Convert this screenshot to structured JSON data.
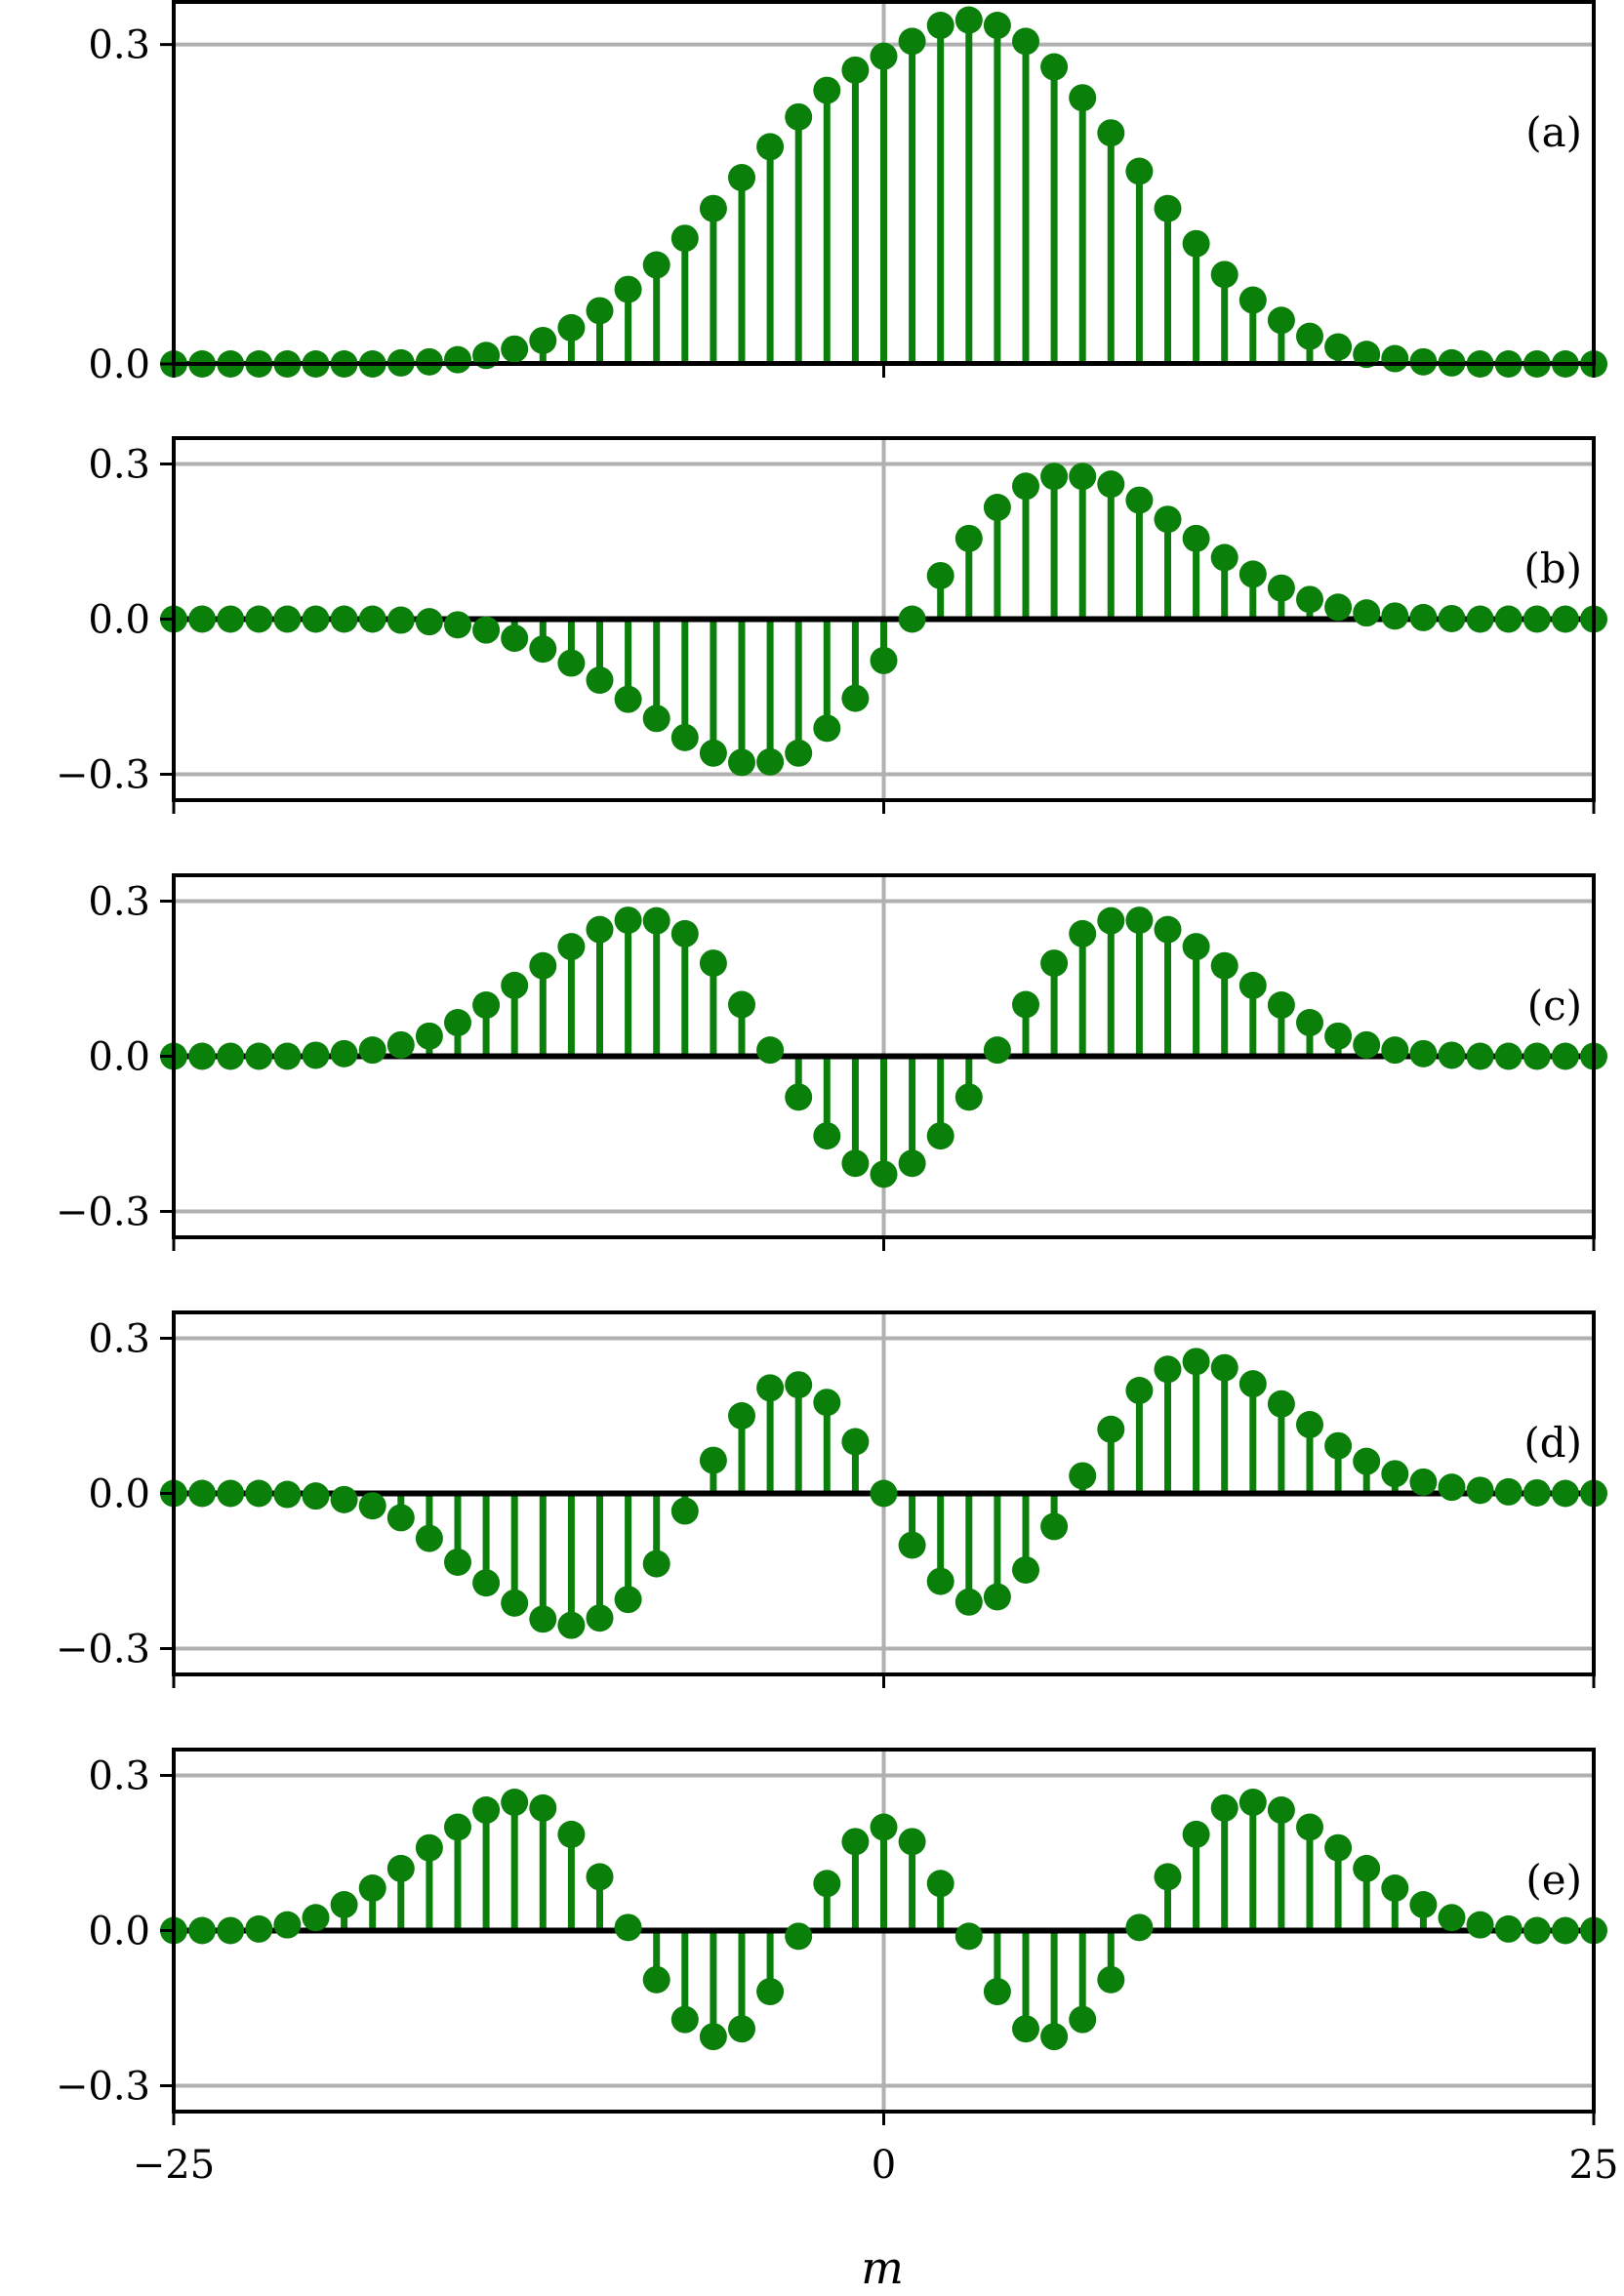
{
  "chart_data": {
    "type": "stem",
    "xlabel": "m",
    "x": [
      -25,
      -24,
      -23,
      -22,
      -21,
      -20,
      -19,
      -18,
      -17,
      -16,
      -15,
      -14,
      -13,
      -12,
      -11,
      -10,
      -9,
      -8,
      -7,
      -6,
      -5,
      -4,
      -3,
      -2,
      -1,
      0,
      1,
      2,
      3,
      4,
      5,
      6,
      7,
      8,
      9,
      10,
      11,
      12,
      13,
      14,
      15,
      16,
      17,
      18,
      19,
      20,
      21,
      22,
      23,
      24,
      25
    ],
    "xlim": [
      -25,
      25
    ],
    "xticks": [
      -25,
      0,
      25
    ],
    "xtick_labels": [
      "−25",
      "0",
      "25"
    ],
    "grid": true,
    "colors": {
      "stem": "#0a800a",
      "grid": "#b0b0b0",
      "axis": "#000000"
    },
    "panels": [
      {
        "label": "(a)",
        "ylim": [
          0,
          0.34
        ],
        "yticks": [
          0,
          0.3
        ],
        "ytick_labels": [
          "0.0",
          "0.3"
        ],
        "values": [
          0,
          0,
          0,
          0,
          0,
          0,
          0,
          0,
          0.001,
          0.002,
          0.004,
          0.008,
          0.014,
          0.022,
          0.034,
          0.05,
          0.07,
          0.093,
          0.118,
          0.146,
          0.175,
          0.204,
          0.232,
          0.257,
          0.276,
          0.289,
          0.303,
          0.318,
          0.323,
          0.318,
          0.303,
          0.279,
          0.25,
          0.217,
          0.181,
          0.146,
          0.113,
          0.084,
          0.06,
          0.041,
          0.026,
          0.016,
          0.009,
          0.005,
          0.002,
          0.001,
          0,
          0,
          0,
          0,
          0
        ]
      },
      {
        "label": "(b)",
        "ylim": [
          -0.35,
          0.35
        ],
        "yticks": [
          -0.3,
          0,
          0.3
        ],
        "ytick_labels": [
          "−0.3",
          "0.0",
          "0.3"
        ],
        "values": [
          0,
          0,
          0,
          0,
          0,
          0,
          0,
          0,
          -0.002,
          -0.005,
          -0.011,
          -0.021,
          -0.037,
          -0.058,
          -0.085,
          -0.118,
          -0.155,
          -0.192,
          -0.229,
          -0.259,
          -0.277,
          -0.276,
          -0.259,
          -0.211,
          -0.153,
          -0.08,
          0,
          0.084,
          0.156,
          0.216,
          0.257,
          0.276,
          0.276,
          0.261,
          0.23,
          0.193,
          0.156,
          0.119,
          0.087,
          0.06,
          0.038,
          0.023,
          0.012,
          0.006,
          0.003,
          0.001,
          0,
          0,
          0,
          0,
          0
        ]
      },
      {
        "label": "(c)",
        "ylim": [
          -0.35,
          0.35
        ],
        "yticks": [
          -0.3,
          0,
          0.3
        ],
        "ytick_labels": [
          "−0.3",
          "0.0",
          "0.3"
        ],
        "values": [
          0,
          0,
          0,
          0,
          0,
          0.002,
          0.005,
          0.012,
          0.022,
          0.039,
          0.065,
          0.099,
          0.137,
          0.175,
          0.212,
          0.245,
          0.263,
          0.262,
          0.237,
          0.18,
          0.1,
          0.012,
          -0.079,
          -0.154,
          -0.207,
          -0.228,
          -0.207,
          -0.154,
          -0.079,
          0.012,
          0.1,
          0.18,
          0.237,
          0.262,
          0.263,
          0.245,
          0.212,
          0.175,
          0.137,
          0.099,
          0.065,
          0.039,
          0.022,
          0.012,
          0.005,
          0.002,
          0,
          0,
          0,
          0,
          0
        ]
      },
      {
        "label": "(d)",
        "ylim": [
          -0.35,
          0.35
        ],
        "yticks": [
          -0.3,
          0,
          0.3
        ],
        "ytick_labels": [
          "−0.3",
          "0.0",
          "0.3"
        ],
        "values": [
          0,
          0,
          0,
          0,
          -0.002,
          -0.005,
          -0.012,
          -0.024,
          -0.047,
          -0.087,
          -0.133,
          -0.173,
          -0.212,
          -0.243,
          -0.255,
          -0.241,
          -0.205,
          -0.136,
          -0.034,
          0.064,
          0.15,
          0.204,
          0.21,
          0.176,
          0.1,
          0,
          -0.1,
          -0.17,
          -0.21,
          -0.2,
          -0.148,
          -0.064,
          0.034,
          0.124,
          0.199,
          0.24,
          0.255,
          0.243,
          0.212,
          0.173,
          0.133,
          0.092,
          0.062,
          0.038,
          0.022,
          0.012,
          0.006,
          0.003,
          0.001,
          0,
          0
        ]
      },
      {
        "label": "(e)",
        "ylim": [
          -0.35,
          0.35
        ],
        "yticks": [
          -0.3,
          0,
          0.3
        ],
        "ytick_labels": [
          "−0.3",
          "0.0",
          "0.3"
        ],
        "values": [
          0,
          0,
          0,
          0.003,
          0.011,
          0.025,
          0.05,
          0.082,
          0.12,
          0.16,
          0.2,
          0.233,
          0.248,
          0.237,
          0.186,
          0.104,
          0.006,
          -0.095,
          -0.172,
          -0.205,
          -0.19,
          -0.118,
          -0.011,
          0.091,
          0.172,
          0.2,
          0.172,
          0.091,
          -0.011,
          -0.118,
          -0.19,
          -0.205,
          -0.172,
          -0.095,
          0.006,
          0.104,
          0.186,
          0.237,
          0.248,
          0.233,
          0.2,
          0.16,
          0.12,
          0.082,
          0.05,
          0.025,
          0.011,
          0.003,
          0,
          0,
          0
        ]
      }
    ]
  }
}
